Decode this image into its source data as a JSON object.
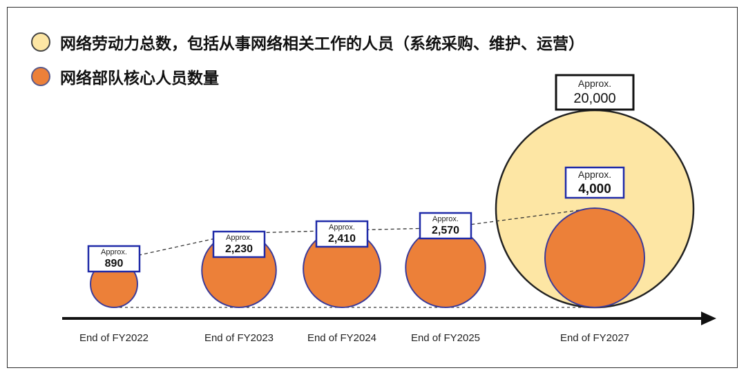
{
  "legend": [
    {
      "label": "网络劳动力总数，包括从事网络相关工作的人员（系统采购、维护、运营）",
      "color": "#fde6a4",
      "border": "#444444"
    },
    {
      "label": "网络部队核心人员数量",
      "color": "#ec8039",
      "border": "#5a5a8a"
    }
  ],
  "chart_data": {
    "type": "bubble",
    "categories": [
      "End of FY2022",
      "End of FY2023",
      "End of FY2024",
      "End of FY2025",
      "End of FY2027"
    ],
    "series": [
      {
        "name": "网络部队核心人员数量",
        "values": [
          890,
          2230,
          2410,
          2570,
          4000
        ],
        "labels": [
          "890",
          "2,230",
          "2,410",
          "2,570",
          "4,000"
        ],
        "color": "#ec8039",
        "stroke": "#3b3b99"
      },
      {
        "name": "网络劳动力总数，包括从事网络相关工作的人员（系统采购、维护、运营）",
        "values": [
          null,
          null,
          null,
          null,
          20000
        ],
        "labels": [
          null,
          null,
          null,
          null,
          "20,000"
        ],
        "color": "#fde6a4",
        "stroke": "#222222"
      }
    ],
    "label_prefix": "Approx.",
    "colors": {
      "core": "#ec8039",
      "total": "#fde6a4",
      "label_border_core": "#1f2aa8",
      "label_border_total": "#111111",
      "axis": "#111111"
    }
  }
}
